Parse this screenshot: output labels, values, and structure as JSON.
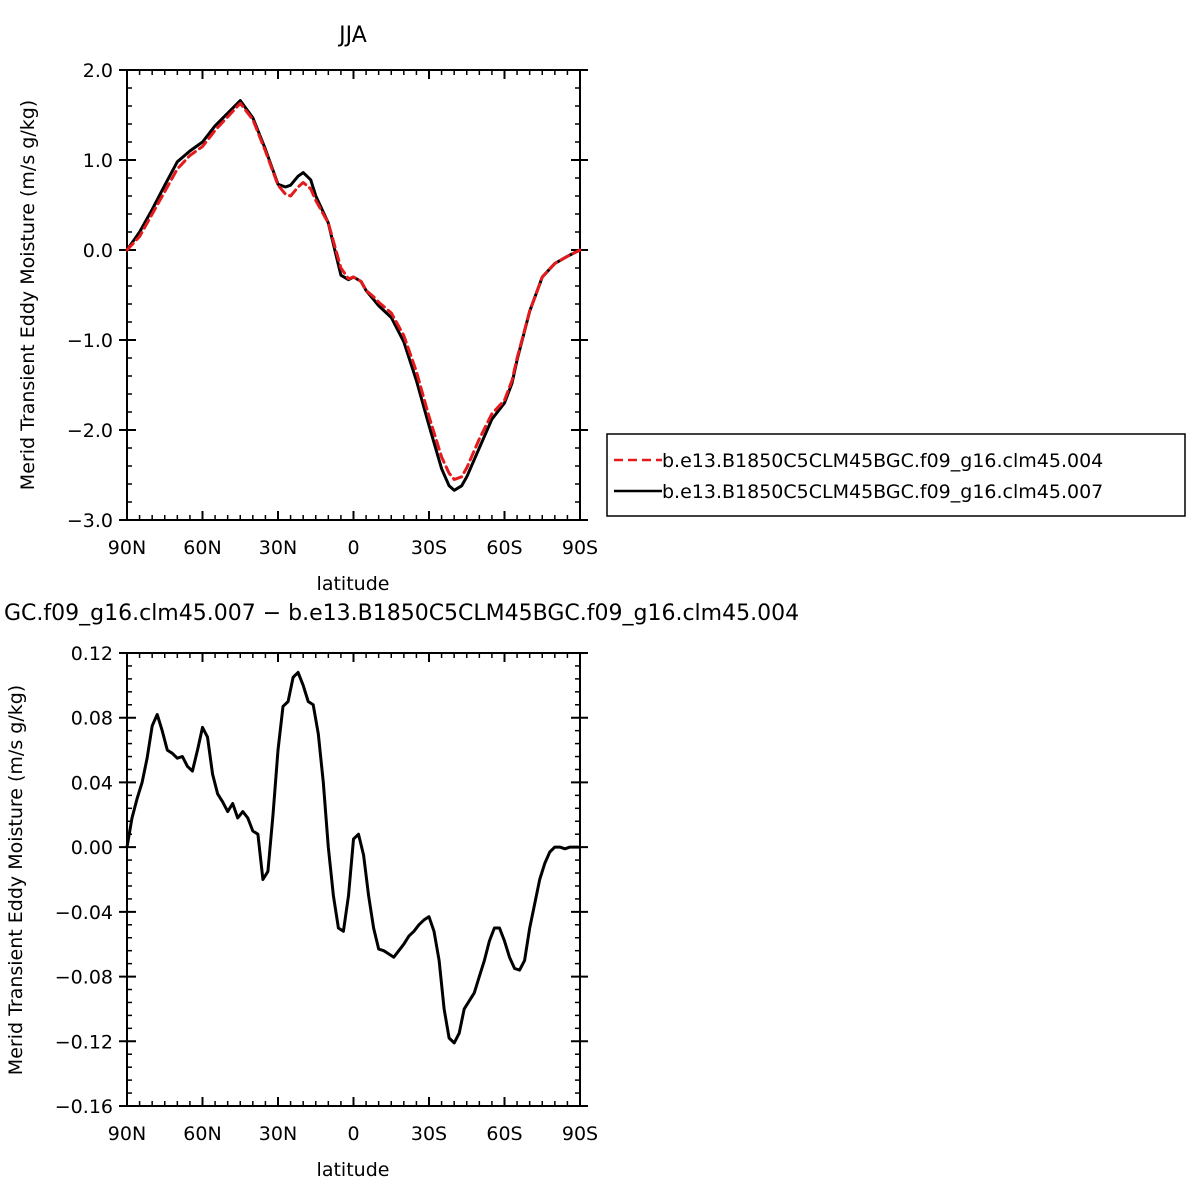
{
  "chart_data": [
    {
      "type": "line",
      "title": "JJA",
      "xlabel": "latitude",
      "ylabel": "Merid Transient Eddy Moisture (m/s g/kg)",
      "x_tick_labels": [
        "90N",
        "60N",
        "30N",
        "0",
        "30S",
        "60S",
        "90S"
      ],
      "x_tick_values": [
        90,
        60,
        30,
        0,
        -30,
        -60,
        -90
      ],
      "xlim": [
        90,
        -90
      ],
      "ylim": [
        -3.0,
        2.0
      ],
      "y_tick_labels": [
        "2.0",
        "1.0",
        "0.0",
        "−1.0",
        "−2.0",
        "−3.0"
      ],
      "y_tick_values": [
        2.0,
        1.0,
        0.0,
        -1.0,
        -2.0,
        -3.0
      ],
      "legend_position": "right",
      "series": [
        {
          "name": "b.e13.B1850C5CLM45BGC.f09_g16.clm45.004",
          "color": "#e41a1c",
          "dash": "dashed",
          "x": [
            90,
            85,
            80,
            75,
            70,
            65,
            60,
            55,
            50,
            45,
            40,
            35,
            30,
            27,
            25,
            22,
            20,
            17,
            15,
            10,
            5,
            2,
            0,
            -3,
            -5,
            -8,
            -10,
            -15,
            -20,
            -25,
            -30,
            -35,
            -38,
            -40,
            -43,
            -45,
            -50,
            -55,
            -60,
            -63,
            -65,
            -70,
            -75,
            -80,
            -85,
            -90
          ],
          "y": [
            0.0,
            0.15,
            0.4,
            0.65,
            0.9,
            1.05,
            1.15,
            1.33,
            1.48,
            1.63,
            1.45,
            1.1,
            0.72,
            0.62,
            0.6,
            0.7,
            0.75,
            0.68,
            0.55,
            0.3,
            -0.2,
            -0.32,
            -0.3,
            -0.35,
            -0.45,
            -0.52,
            -0.58,
            -0.7,
            -0.95,
            -1.35,
            -1.85,
            -2.3,
            -2.48,
            -2.55,
            -2.52,
            -2.42,
            -2.1,
            -1.82,
            -1.67,
            -1.45,
            -1.2,
            -0.68,
            -0.3,
            -0.15,
            -0.07,
            0.0
          ]
        },
        {
          "name": "b.e13.B1850C5CLM45BGC.f09_g16.clm45.007",
          "color": "#000000",
          "dash": "solid",
          "x": [
            90,
            85,
            80,
            75,
            70,
            65,
            60,
            55,
            50,
            45,
            40,
            35,
            30,
            27,
            25,
            22,
            20,
            17,
            15,
            10,
            5,
            2,
            0,
            -3,
            -5,
            -8,
            -10,
            -15,
            -20,
            -25,
            -30,
            -35,
            -38,
            -40,
            -43,
            -45,
            -50,
            -55,
            -60,
            -63,
            -65,
            -70,
            -75,
            -80,
            -85,
            -90
          ],
          "y": [
            0.0,
            0.2,
            0.45,
            0.72,
            0.98,
            1.1,
            1.2,
            1.38,
            1.52,
            1.66,
            1.47,
            1.12,
            0.73,
            0.7,
            0.72,
            0.82,
            0.86,
            0.78,
            0.6,
            0.3,
            -0.28,
            -0.33,
            -0.3,
            -0.35,
            -0.45,
            -0.55,
            -0.62,
            -0.75,
            -1.02,
            -1.45,
            -1.95,
            -2.43,
            -2.62,
            -2.67,
            -2.62,
            -2.52,
            -2.2,
            -1.88,
            -1.7,
            -1.48,
            -1.22,
            -0.68,
            -0.3,
            -0.15,
            -0.07,
            0.0
          ]
        }
      ]
    },
    {
      "type": "line",
      "title": "GC.f09_g16.clm45.007 − b.e13.B1850C5CLM45BGC.f09_g16.clm45.004",
      "xlabel": "latitude",
      "ylabel": "Merid Transient Eddy Moisture (m/s g/kg)",
      "x_tick_labels": [
        "90N",
        "60N",
        "30N",
        "0",
        "30S",
        "60S",
        "90S"
      ],
      "x_tick_values": [
        90,
        60,
        30,
        0,
        -30,
        -60,
        -90
      ],
      "xlim": [
        90,
        -90
      ],
      "ylim": [
        -0.16,
        0.12
      ],
      "y_tick_labels": [
        "0.12",
        "0.08",
        "0.04",
        "0.00",
        "−0.04",
        "−0.08",
        "−0.12",
        "−0.16"
      ],
      "y_tick_values": [
        0.12,
        0.08,
        0.04,
        0.0,
        -0.04,
        -0.08,
        -0.12,
        -0.16
      ],
      "series": [
        {
          "color": "#000000",
          "dash": "solid",
          "x": [
            90,
            88,
            86,
            84,
            82,
            80,
            78,
            76,
            74,
            72,
            70,
            68,
            66,
            64,
            62,
            60,
            58,
            56,
            54,
            52,
            50,
            48,
            46,
            44,
            42,
            40,
            38,
            36,
            34,
            32,
            30,
            28,
            26,
            24,
            22,
            20,
            18,
            16,
            14,
            12,
            10,
            8,
            6,
            4,
            2,
            0,
            -2,
            -4,
            -6,
            -8,
            -10,
            -12,
            -14,
            -16,
            -18,
            -20,
            -22,
            -24,
            -26,
            -28,
            -30,
            -32,
            -34,
            -36,
            -38,
            -40,
            -42,
            -44,
            -46,
            -48,
            -50,
            -52,
            -54,
            -56,
            -58,
            -60,
            -62,
            -64,
            -66,
            -68,
            -70,
            -72,
            -74,
            -76,
            -78,
            -80,
            -82,
            -84,
            -86,
            -88,
            -90
          ],
          "y": [
            0.0,
            0.018,
            0.03,
            0.04,
            0.055,
            0.075,
            0.082,
            0.072,
            0.06,
            0.058,
            0.055,
            0.056,
            0.05,
            0.047,
            0.06,
            0.074,
            0.068,
            0.045,
            0.033,
            0.028,
            0.022,
            0.027,
            0.018,
            0.022,
            0.018,
            0.01,
            0.008,
            -0.02,
            -0.015,
            0.02,
            0.06,
            0.087,
            0.09,
            0.105,
            0.108,
            0.1,
            0.09,
            0.088,
            0.07,
            0.04,
            0.0,
            -0.03,
            -0.05,
            -0.052,
            -0.03,
            0.005,
            0.008,
            -0.005,
            -0.03,
            -0.05,
            -0.063,
            -0.064,
            -0.066,
            -0.068,
            -0.064,
            -0.06,
            -0.055,
            -0.052,
            -0.048,
            -0.045,
            -0.043,
            -0.052,
            -0.07,
            -0.1,
            -0.118,
            -0.121,
            -0.115,
            -0.1,
            -0.095,
            -0.09,
            -0.08,
            -0.07,
            -0.058,
            -0.05,
            -0.05,
            -0.058,
            -0.068,
            -0.075,
            -0.076,
            -0.07,
            -0.05,
            -0.035,
            -0.02,
            -0.01,
            -0.003,
            0.0,
            0.0,
            -0.001,
            0.0,
            0.0,
            0.0
          ]
        }
      ]
    }
  ]
}
